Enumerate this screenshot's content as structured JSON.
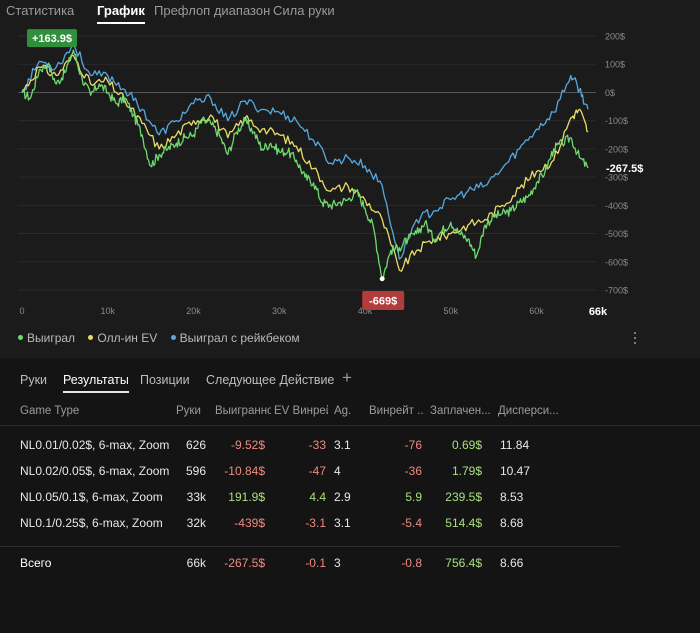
{
  "top_tabs": [
    "Статистика",
    "График",
    "Префлоп диапазон",
    "Сила руки"
  ],
  "active_top_tab": 1,
  "chart_data": {
    "type": "line",
    "xlim": [
      0,
      66000
    ],
    "ylim": [
      -700,
      200
    ],
    "x_ticks": [
      {
        "value": 0,
        "label": "0"
      },
      {
        "value": 10000,
        "label": "10k"
      },
      {
        "value": 20000,
        "label": "20k"
      },
      {
        "value": 30000,
        "label": "30k"
      },
      {
        "value": 40000,
        "label": "40k"
      },
      {
        "value": 50000,
        "label": "50k"
      },
      {
        "value": 60000,
        "label": "60k"
      }
    ],
    "x_end_label": "66k",
    "y_ticks": [
      {
        "value": 200,
        "label": "200$"
      },
      {
        "value": 100,
        "label": "100$"
      },
      {
        "value": 0,
        "label": "0$"
      },
      {
        "value": -100,
        "label": "-100$"
      },
      {
        "value": -200,
        "label": "-200$"
      },
      {
        "value": -300,
        "label": "-300$"
      },
      {
        "value": -400,
        "label": "-400$"
      },
      {
        "value": -500,
        "label": "-500$"
      },
      {
        "value": -600,
        "label": "-600$"
      },
      {
        "value": -700,
        "label": "-700$"
      }
    ],
    "grid": "horizontal",
    "max_label": "+163.9$",
    "min_label": "-669$",
    "end_label": "-267.5$",
    "series": [
      {
        "name": "Выиграл",
        "color": "#6fd96f",
        "x": [
          0,
          1000,
          2000,
          3000,
          4000,
          5000,
          6000,
          7000,
          8000,
          9000,
          10000,
          11000,
          12000,
          13000,
          14000,
          15000,
          16000,
          17000,
          18000,
          19000,
          20000,
          21000,
          22000,
          23000,
          24000,
          25000,
          26000,
          27000,
          28000,
          29000,
          30000,
          31000,
          32000,
          33000,
          34000,
          35000,
          36000,
          37000,
          38000,
          39000,
          40000,
          41000,
          42000,
          43000,
          44000,
          45000,
          46000,
          47000,
          48000,
          49000,
          50000,
          51000,
          52000,
          53000,
          54000,
          55000,
          56000,
          57000,
          58000,
          59000,
          60000,
          61000,
          62000,
          63000,
          64000,
          65000,
          66000
        ],
        "values": [
          0,
          -20,
          80,
          100,
          30,
          70,
          150,
          50,
          -10,
          30,
          0,
          -40,
          -20,
          -80,
          -150,
          -260,
          -220,
          -200,
          -180,
          -160,
          -150,
          -100,
          -110,
          -150,
          -220,
          -140,
          -100,
          -140,
          -200,
          -180,
          -210,
          -210,
          -240,
          -300,
          -320,
          -390,
          -400,
          -390,
          -380,
          -350,
          -410,
          -480,
          -660,
          -560,
          -550,
          -520,
          -500,
          -460,
          -520,
          -490,
          -460,
          -500,
          -520,
          -580,
          -470,
          -440,
          -430,
          -420,
          -390,
          -370,
          -320,
          -280,
          -200,
          -180,
          -160,
          -230,
          -267.5
        ]
      },
      {
        "name": "Олл-ин EV",
        "color": "#e8dc6a",
        "x": [
          0,
          2000,
          4000,
          6000,
          8000,
          10000,
          12000,
          14000,
          16000,
          18000,
          20000,
          22000,
          24000,
          26000,
          28000,
          30000,
          32000,
          34000,
          36000,
          38000,
          40000,
          42000,
          44000,
          46000,
          48000,
          50000,
          52000,
          54000,
          56000,
          58000,
          60000,
          62000,
          64000,
          65000,
          66000
        ],
        "values": [
          0,
          90,
          60,
          130,
          30,
          40,
          -30,
          -110,
          -200,
          -150,
          -100,
          -80,
          -160,
          -90,
          -130,
          -150,
          -190,
          -270,
          -350,
          -330,
          -380,
          -450,
          -630,
          -560,
          -520,
          -500,
          -470,
          -450,
          -400,
          -340,
          -280,
          -240,
          -90,
          -60,
          -140
        ]
      },
      {
        "name": "Выиграл с рейкбеком",
        "color": "#56a8e0",
        "x": [
          0,
          2000,
          4000,
          6000,
          8000,
          10000,
          12000,
          14000,
          16000,
          18000,
          20000,
          22000,
          24000,
          26000,
          28000,
          30000,
          32000,
          34000,
          36000,
          38000,
          40000,
          42000,
          44000,
          46000,
          48000,
          50000,
          52000,
          54000,
          56000,
          58000,
          60000,
          62000,
          64000,
          65000,
          66000
        ],
        "values": [
          0,
          110,
          90,
          170,
          60,
          60,
          10,
          -60,
          -150,
          -100,
          -40,
          -20,
          -100,
          -30,
          -60,
          -70,
          -100,
          -170,
          -250,
          -230,
          -260,
          -330,
          -590,
          -450,
          -420,
          -380,
          -350,
          -330,
          -270,
          -200,
          -130,
          -70,
          60,
          10,
          -60
        ]
      }
    ]
  },
  "legend": [
    "Выиграл",
    "Олл-ин EV",
    "Выиграл с рейкбеком"
  ],
  "sub_tabs": [
    "Руки",
    "Результаты",
    "Позиции",
    "Следующее Действие"
  ],
  "active_sub_tab": 1,
  "add_tab_label": "+",
  "table": {
    "headers": [
      "Game Type",
      "Руки",
      "Выигранно",
      "EV Винрей...",
      "Ag.",
      "Винрейт ...",
      "Заплачен...",
      "Дисперси..."
    ],
    "rows": [
      [
        "NL0.01/0.02$, 6-max, Zoom",
        "626",
        "-9.52$",
        "-33",
        "3.1",
        "-76",
        "0.69$",
        "11.84"
      ],
      [
        "NL0.02/0.05$, 6-max, Zoom",
        "596",
        "-10.84$",
        "-47",
        "4",
        "-36",
        "1.79$",
        "10.47"
      ],
      [
        "NL0.05/0.1$, 6-max, Zoom",
        "33k",
        "191.9$",
        "4.4",
        "2.9",
        "5.9",
        "239.5$",
        "8.53"
      ],
      [
        "NL0.1/0.25$, 6-max, Zoom",
        "32k",
        "-439$",
        "-3.1",
        "3.1",
        "-5.4",
        "514.4$",
        "8.68"
      ]
    ],
    "total": [
      "Всего",
      "66k",
      "-267.5$",
      "-0.1",
      "3",
      "-0.8",
      "756.4$",
      "8.66"
    ]
  }
}
